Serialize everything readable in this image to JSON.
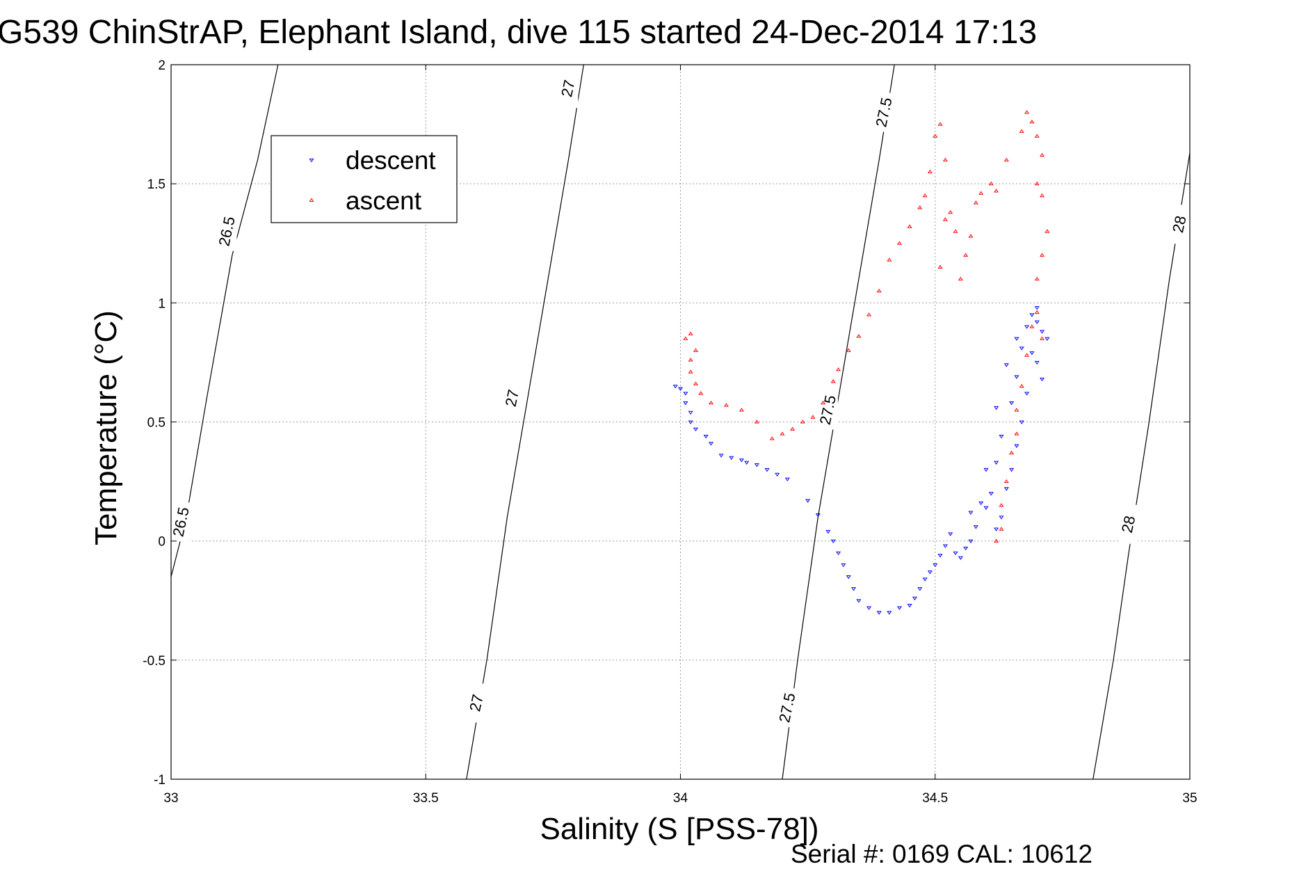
{
  "chart_data": {
    "type": "scatter",
    "title": "G539 ChinStrAP, Elephant Island, dive 115 started 24-Dec-2014 17:13",
    "xlabel": "Salinity (S [PSS-78])",
    "ylabel": "Temperature (°C)",
    "xlim": [
      33,
      35
    ],
    "ylim": [
      -1,
      2
    ],
    "xticks": [
      33,
      33.5,
      34,
      34.5,
      35
    ],
    "xtick_labels": [
      "33",
      "33.5",
      "34",
      "34.5",
      "35"
    ],
    "yticks": [
      -1,
      -0.5,
      0,
      0.5,
      1,
      1.5,
      2
    ],
    "ytick_labels": [
      "-1",
      "-0.5",
      "0",
      "0.5",
      "1",
      "1.5",
      "2"
    ],
    "grid": true,
    "legend_position": "top-left",
    "footer": "Serial #: 0169 CAL: 10612",
    "series": [
      {
        "name": "descent",
        "marker": "triangle-down",
        "color": "#0000ff",
        "points": [
          [
            33.99,
            0.65
          ],
          [
            34.0,
            0.64
          ],
          [
            34.01,
            0.62
          ],
          [
            34.01,
            0.58
          ],
          [
            34.02,
            0.54
          ],
          [
            34.02,
            0.5
          ],
          [
            34.03,
            0.47
          ],
          [
            34.05,
            0.44
          ],
          [
            34.06,
            0.41
          ],
          [
            34.08,
            0.36
          ],
          [
            34.1,
            0.35
          ],
          [
            34.12,
            0.34
          ],
          [
            34.13,
            0.33
          ],
          [
            34.15,
            0.32
          ],
          [
            34.17,
            0.3
          ],
          [
            34.19,
            0.28
          ],
          [
            34.21,
            0.26
          ],
          [
            34.25,
            0.17
          ],
          [
            34.27,
            0.11
          ],
          [
            34.29,
            0.04
          ],
          [
            34.3,
            0.0
          ],
          [
            34.31,
            -0.05
          ],
          [
            34.32,
            -0.1
          ],
          [
            34.33,
            -0.15
          ],
          [
            34.34,
            -0.2
          ],
          [
            34.35,
            -0.25
          ],
          [
            34.37,
            -0.28
          ],
          [
            34.39,
            -0.3
          ],
          [
            34.41,
            -0.3
          ],
          [
            34.43,
            -0.28
          ],
          [
            34.45,
            -0.27
          ],
          [
            34.46,
            -0.24
          ],
          [
            34.47,
            -0.2
          ],
          [
            34.48,
            -0.16
          ],
          [
            34.49,
            -0.13
          ],
          [
            34.5,
            -0.1
          ],
          [
            34.51,
            -0.06
          ],
          [
            34.52,
            -0.02
          ],
          [
            34.53,
            0.03
          ],
          [
            34.54,
            -0.05
          ],
          [
            34.55,
            -0.07
          ],
          [
            34.56,
            -0.03
          ],
          [
            34.57,
            0.0
          ],
          [
            34.58,
            0.06
          ],
          [
            34.57,
            0.12
          ],
          [
            34.6,
            0.14
          ],
          [
            34.61,
            0.2
          ],
          [
            34.6,
            0.3
          ],
          [
            34.62,
            0.33
          ],
          [
            34.63,
            0.44
          ],
          [
            34.62,
            0.56
          ],
          [
            34.65,
            0.58
          ],
          [
            34.66,
            0.69
          ],
          [
            34.64,
            0.74
          ],
          [
            34.67,
            0.81
          ],
          [
            34.66,
            0.85
          ],
          [
            34.68,
            0.9
          ],
          [
            34.69,
            0.95
          ],
          [
            34.7,
            0.92
          ],
          [
            34.71,
            0.88
          ],
          [
            34.7,
            0.98
          ],
          [
            34.72,
            0.85
          ],
          [
            34.69,
            0.79
          ],
          [
            34.7,
            0.75
          ],
          [
            34.71,
            0.68
          ],
          [
            34.68,
            0.62
          ],
          [
            34.67,
            0.5
          ],
          [
            34.66,
            0.4
          ],
          [
            34.65,
            0.3
          ],
          [
            34.64,
            0.22
          ],
          [
            34.63,
            0.1
          ],
          [
            34.62,
            0.05
          ],
          [
            34.59,
            0.16
          ]
        ]
      },
      {
        "name": "ascent",
        "marker": "triangle-up",
        "color": "#ff0000",
        "points": [
          [
            34.62,
            0.0
          ],
          [
            34.63,
            0.05
          ],
          [
            34.63,
            0.15
          ],
          [
            34.64,
            0.25
          ],
          [
            34.65,
            0.37
          ],
          [
            34.66,
            0.45
          ],
          [
            34.66,
            0.55
          ],
          [
            34.67,
            0.65
          ],
          [
            34.68,
            0.78
          ],
          [
            34.69,
            0.9
          ],
          [
            34.7,
            0.96
          ],
          [
            34.71,
            0.85
          ],
          [
            34.7,
            1.1
          ],
          [
            34.71,
            1.2
          ],
          [
            34.72,
            1.3
          ],
          [
            34.71,
            1.45
          ],
          [
            34.7,
            1.5
          ],
          [
            34.71,
            1.62
          ],
          [
            34.7,
            1.7
          ],
          [
            34.69,
            1.76
          ],
          [
            34.68,
            1.8
          ],
          [
            34.67,
            1.72
          ],
          [
            34.64,
            1.6
          ],
          [
            34.62,
            1.47
          ],
          [
            34.61,
            1.5
          ],
          [
            34.59,
            1.46
          ],
          [
            34.58,
            1.42
          ],
          [
            34.57,
            1.28
          ],
          [
            34.56,
            1.2
          ],
          [
            34.55,
            1.1
          ],
          [
            34.54,
            1.3
          ],
          [
            34.53,
            1.38
          ],
          [
            34.52,
            1.35
          ],
          [
            34.51,
            1.15
          ],
          [
            34.52,
            1.6
          ],
          [
            34.51,
            1.75
          ],
          [
            34.5,
            1.7
          ],
          [
            34.49,
            1.55
          ],
          [
            34.48,
            1.45
          ],
          [
            34.47,
            1.4
          ],
          [
            34.45,
            1.32
          ],
          [
            34.43,
            1.25
          ],
          [
            34.41,
            1.18
          ],
          [
            34.39,
            1.05
          ],
          [
            34.37,
            0.95
          ],
          [
            34.35,
            0.86
          ],
          [
            34.33,
            0.8
          ],
          [
            34.31,
            0.72
          ],
          [
            34.3,
            0.67
          ],
          [
            34.28,
            0.58
          ],
          [
            34.26,
            0.52
          ],
          [
            34.24,
            0.5
          ],
          [
            34.22,
            0.47
          ],
          [
            34.2,
            0.45
          ],
          [
            34.18,
            0.43
          ],
          [
            34.15,
            0.5
          ],
          [
            34.12,
            0.55
          ],
          [
            34.09,
            0.57
          ],
          [
            34.06,
            0.58
          ],
          [
            34.04,
            0.62
          ],
          [
            34.03,
            0.66
          ],
          [
            34.02,
            0.71
          ],
          [
            34.02,
            0.76
          ],
          [
            34.03,
            0.8
          ],
          [
            34.01,
            0.85
          ],
          [
            34.02,
            0.87
          ]
        ]
      }
    ],
    "isopycnals": [
      {
        "value": "26.5",
        "points": [
          [
            33.0,
            -0.15
          ],
          [
            33.03,
            0.1
          ],
          [
            33.07,
            0.6
          ],
          [
            33.12,
            1.2
          ],
          [
            33.17,
            1.6
          ],
          [
            33.21,
            2.0
          ]
        ],
        "labels": [
          [
            33.02,
            0.08
          ],
          [
            33.11,
            1.3
          ]
        ]
      },
      {
        "value": "27",
        "points": [
          [
            33.58,
            -1.0
          ],
          [
            33.62,
            -0.5
          ],
          [
            33.66,
            0.1
          ],
          [
            33.7,
            0.6
          ],
          [
            33.74,
            1.1
          ],
          [
            33.78,
            1.6
          ],
          [
            33.81,
            2.0
          ]
        ],
        "labels": [
          [
            33.6,
            -0.68
          ],
          [
            33.67,
            0.6
          ],
          [
            33.78,
            1.9
          ]
        ]
      },
      {
        "value": "27.5",
        "points": [
          [
            34.2,
            -1.0
          ],
          [
            34.23,
            -0.5
          ],
          [
            34.27,
            0.1
          ],
          [
            34.31,
            0.6
          ],
          [
            34.35,
            1.1
          ],
          [
            34.39,
            1.6
          ],
          [
            34.42,
            2.0
          ]
        ],
        "labels": [
          [
            34.21,
            -0.7
          ],
          [
            34.29,
            0.55
          ],
          [
            34.4,
            1.8
          ]
        ]
      },
      {
        "value": "28",
        "points": [
          [
            34.81,
            -1.0
          ],
          [
            34.85,
            -0.5
          ],
          [
            34.88,
            -0.05
          ],
          [
            34.92,
            0.5
          ],
          [
            34.96,
            1.1
          ],
          [
            35.0,
            1.63
          ]
        ],
        "labels": [
          [
            34.88,
            0.07
          ],
          [
            34.98,
            1.33
          ]
        ]
      }
    ]
  }
}
